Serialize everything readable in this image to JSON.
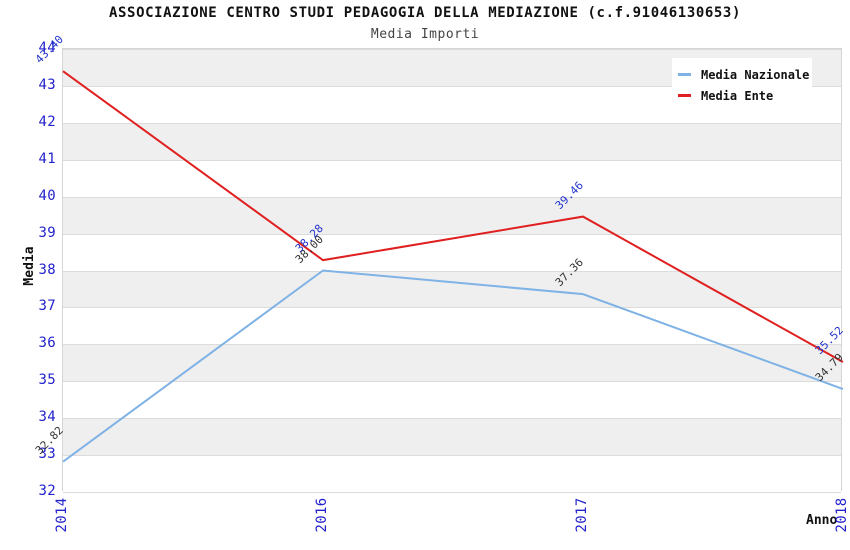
{
  "chart_data": {
    "type": "line",
    "title": "ASSOCIAZIONE CENTRO STUDI PEDAGOGIA DELLA MEDIAZIONE (c.f.91046130653)",
    "subtitle": "Media Importi",
    "xlabel": "Anno",
    "ylabel": "Media",
    "categories": [
      "2014",
      "2016",
      "2017",
      "2018"
    ],
    "ylim": [
      32,
      44
    ],
    "yticks": [
      32,
      33,
      34,
      35,
      36,
      37,
      38,
      39,
      40,
      41,
      42,
      43,
      44
    ],
    "grid": true,
    "legend_position": "top-right",
    "background_bands": [
      "#EFEFEF",
      "#FFFFFF"
    ],
    "gridline_color": "#DCDCDC",
    "axis_tick_color": "#2222CC",
    "series": [
      {
        "name": "Media Nazionale",
        "color": "#7FB2E5",
        "label_color": "#333333",
        "values": [
          32.82,
          38.0,
          37.36,
          34.79
        ],
        "value_labels": [
          "32.82",
          "38.00",
          "37.36",
          "34.79"
        ]
      },
      {
        "name": "Media Ente",
        "color": "#E02020",
        "label_color": "#2233CC",
        "values": [
          43.4,
          38.28,
          39.46,
          35.52
        ],
        "value_labels": [
          "43.40",
          "38.28",
          "39.46",
          "35.52"
        ]
      }
    ]
  }
}
